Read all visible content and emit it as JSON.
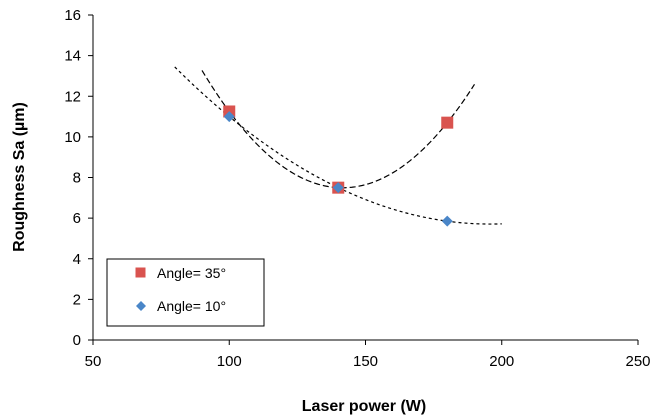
{
  "chart_data": {
    "type": "scatter",
    "title": "",
    "xlabel": "Laser power (W)",
    "ylabel": "Roughness Sa (µm)",
    "xlim": [
      50,
      250
    ],
    "ylim": [
      0,
      16
    ],
    "xticks": [
      "50",
      "100",
      "150",
      "200",
      "250"
    ],
    "yticks": [
      "0",
      "2",
      "4",
      "6",
      "8",
      "10",
      "12",
      "14",
      "16"
    ],
    "grid": false,
    "legend_position": "bottom-left",
    "series": [
      {
        "name": "Angle= 35°",
        "marker": "square",
        "color": "#d9534f",
        "points": [
          {
            "x": 100,
            "y": 11.25
          },
          {
            "x": 140,
            "y": 7.5
          },
          {
            "x": 180,
            "y": 10.7
          }
        ],
        "trendline": "polynomial",
        "trend_x_range": [
          90,
          190
        ]
      },
      {
        "name": "Angle= 10°",
        "marker": "diamond",
        "color": "#4a86c8",
        "points": [
          {
            "x": 100,
            "y": 11.0
          },
          {
            "x": 140,
            "y": 7.5
          },
          {
            "x": 180,
            "y": 5.85
          }
        ],
        "trendline": "polynomial",
        "trend_x_range": [
          80,
          200
        ]
      }
    ]
  }
}
